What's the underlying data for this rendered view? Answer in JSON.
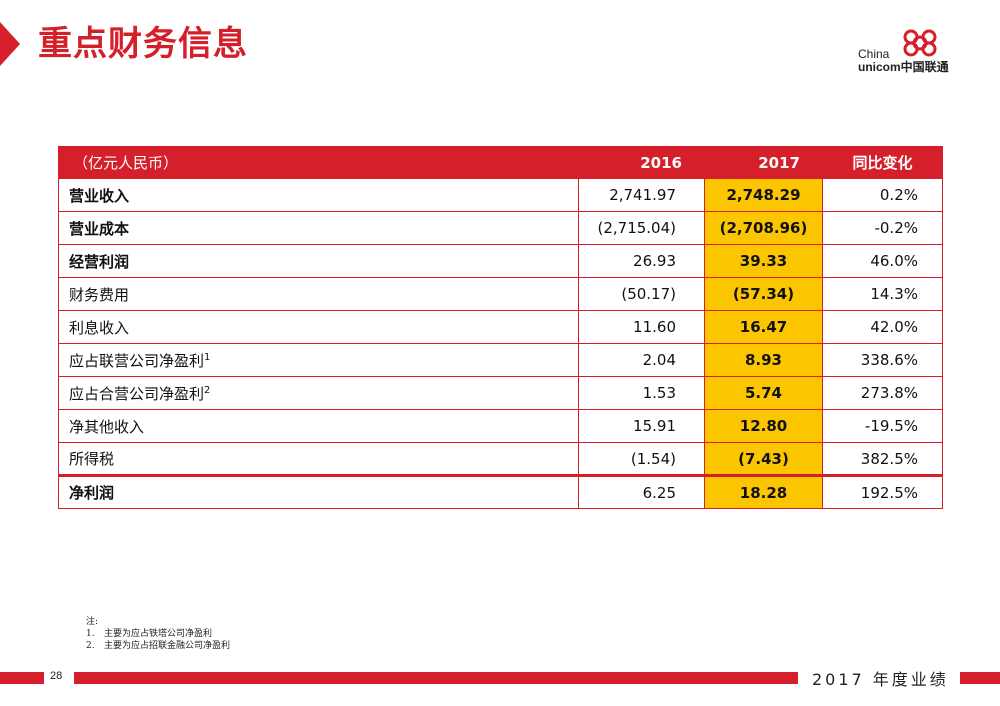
{
  "page": {
    "title": "重点财务信息",
    "page_number": "28",
    "footer_label": "2017 年度业绩",
    "accent_color": "#d5202b",
    "highlight_color": "#fbc600"
  },
  "logo": {
    "line1": "China",
    "line2": "unicom中国联通"
  },
  "table": {
    "headers": {
      "unit": "（亿元人民币）",
      "y2016": "2016",
      "y2017": "2017",
      "change": "同比变化"
    },
    "rows": [
      {
        "label": "营业收入",
        "sup": "",
        "v2016": "2,741.97",
        "v2017": "2,748.29",
        "change": "0.2%"
      },
      {
        "label": "营业成本",
        "sup": "",
        "v2016": "(2,715.04)",
        "v2017": "(2,708.96)",
        "change": "-0.2%"
      },
      {
        "label": "经营利润",
        "sup": "",
        "v2016": "26.93",
        "v2017": "39.33",
        "change": "46.0%"
      },
      {
        "label": "财务费用",
        "sup": "",
        "v2016": "(50.17)",
        "v2017": "(57.34)",
        "change": "14.3%"
      },
      {
        "label": "利息收入",
        "sup": "",
        "v2016": "11.60",
        "v2017": "16.47",
        "change": "42.0%"
      },
      {
        "label": "应占联营公司净盈利",
        "sup": "1",
        "v2016": "2.04",
        "v2017": "8.93",
        "change": "338.6%"
      },
      {
        "label": "应占合营公司净盈利",
        "sup": "2",
        "v2016": "1.53",
        "v2017": "5.74",
        "change": "273.8%"
      },
      {
        "label": "净其他收入",
        "sup": "",
        "v2016": "15.91",
        "v2017": "12.80",
        "change": "-19.5%"
      },
      {
        "label": "所得税",
        "sup": "",
        "v2016": "(1.54)",
        "v2017": "(7.43)",
        "change": "382.5%"
      },
      {
        "label": "净利润",
        "sup": "",
        "v2016": "6.25",
        "v2017": "18.28",
        "change": "192.5%"
      }
    ]
  },
  "notes": {
    "heading": "注:",
    "items": [
      {
        "index": "1.",
        "text": "主要为应占铁塔公司净盈利"
      },
      {
        "index": "2.",
        "text": "主要为应占招联金融公司净盈利"
      }
    ]
  }
}
